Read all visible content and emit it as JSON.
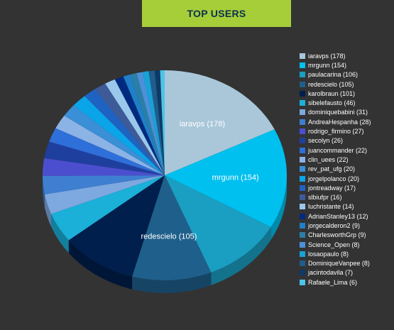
{
  "title": "TOP USERS",
  "colors": {
    "background": "#333333",
    "title_bar": "#a6ce39",
    "title_text": "#0a2f4f",
    "label_text": "#ffffff"
  },
  "chart_data": {
    "type": "pie",
    "title": "TOP USERS",
    "legend_position": "right",
    "series": [
      {
        "name": "iaravps",
        "value": 178,
        "color": "#a9c7d9"
      },
      {
        "name": "mrgunn",
        "value": 154,
        "color": "#00c0ef"
      },
      {
        "name": "paulacarina",
        "value": 106,
        "color": "#1a9ec2"
      },
      {
        "name": "redescielo",
        "value": 105,
        "color": "#1f5f8b"
      },
      {
        "name": "karolbraun",
        "value": 101,
        "color": "#001f4d"
      },
      {
        "name": "sibelefausto",
        "value": 46,
        "color": "#1ab0d8"
      },
      {
        "name": "dominiquebabini",
        "value": 31,
        "color": "#7ea8e0"
      },
      {
        "name": "AndreaHespanha",
        "value": 28,
        "color": "#3e7fd1"
      },
      {
        "name": "rodrigo_firmino",
        "value": 27,
        "color": "#4b4fcf"
      },
      {
        "name": "secolyn",
        "value": 26,
        "color": "#1f3f9f"
      },
      {
        "name": "juancommander",
        "value": 22,
        "color": "#2e6fd9"
      },
      {
        "name": "clin_uees",
        "value": 22,
        "color": "#8cb3e6"
      },
      {
        "name": "rev_pat_ufg",
        "value": 20,
        "color": "#3a8fd6"
      },
      {
        "name": "jorgelpolanco",
        "value": 20,
        "color": "#0aa5e8"
      },
      {
        "name": "jontreadway",
        "value": 17,
        "color": "#1e63c2"
      },
      {
        "name": "slbiufpr",
        "value": 16,
        "color": "#3d5a99"
      },
      {
        "name": "luchristante",
        "value": 14,
        "color": "#9ac8ec"
      },
      {
        "name": "AdrianStanley13",
        "value": 12,
        "color": "#002a80"
      },
      {
        "name": "jorgecalderon2",
        "value": 9,
        "color": "#1f7fc9"
      },
      {
        "name": "CharlesworthGrp",
        "value": 9,
        "color": "#2a7fa8"
      },
      {
        "name": "Science_Open",
        "value": 8,
        "color": "#4d90d9"
      },
      {
        "name": "losaopaulo",
        "value": 8,
        "color": "#18a2d6"
      },
      {
        "name": "DominiqueVanpee",
        "value": 8,
        "color": "#205c8c"
      },
      {
        "name": "jacintodavila",
        "value": 7,
        "color": "#0d3a66"
      },
      {
        "name": "Rafaele_Lima",
        "value": 6,
        "color": "#4fc3e8"
      }
    ],
    "slice_labels": [
      "iaravps (178)",
      "mrgunn (154)",
      "redescielo (105)"
    ],
    "legend_labels": [
      "iaravps (178)",
      "mrgunn (154)",
      "paulacarina (106)",
      "redescielo (105)",
      "karolbraun (101)",
      "sibelefausto (46)",
      "dominiquebabini (31)",
      "AndreaHespanha (28)",
      "rodrigo_firmino (27)",
      "secolyn (26)",
      "juancommander (22)",
      "clin_uees (22)",
      "rev_pat_ufg (20)",
      "jorgelpolanco (20)",
      "jontreadway (17)",
      "slbiufpr (16)",
      "luchristante (14)",
      "AdrianStanley13 (12)",
      "jorgecalderon2 (9)",
      "CharlesworthGrp (9)",
      "Science_Open (8)",
      "losaopaulo (8)",
      "DominiqueVanpee (8)",
      "jacintodavila (7)",
      "Rafaele_Lima (6)"
    ]
  }
}
